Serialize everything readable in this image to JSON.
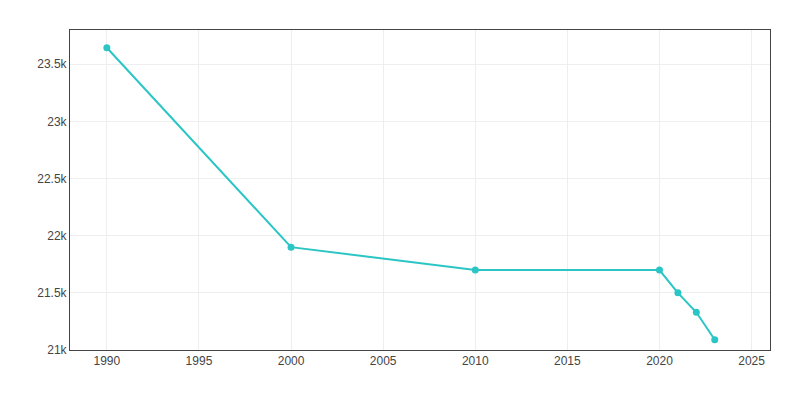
{
  "chart_data": {
    "type": "line",
    "x": [
      1990,
      2000,
      2010,
      2020,
      2021,
      2022,
      2023
    ],
    "values": [
      23645,
      21900,
      21700,
      21700,
      21500,
      21330,
      21090
    ],
    "color": "#2bc5c5",
    "marker": "circle",
    "xlim": [
      1988,
      2026
    ],
    "xticks": [
      1990,
      1995,
      2000,
      2005,
      2010,
      2015,
      2020,
      2025
    ],
    "ylim": [
      21000,
      23800
    ],
    "yticks": [
      {
        "value": 21000,
        "label": "21k"
      },
      {
        "value": 21500,
        "label": "21.5k"
      },
      {
        "value": 22000,
        "label": "22k"
      },
      {
        "value": 22500,
        "label": "22.5k"
      },
      {
        "value": 23000,
        "label": "23k"
      },
      {
        "value": 23500,
        "label": "23.5k"
      }
    ],
    "grid": true
  }
}
